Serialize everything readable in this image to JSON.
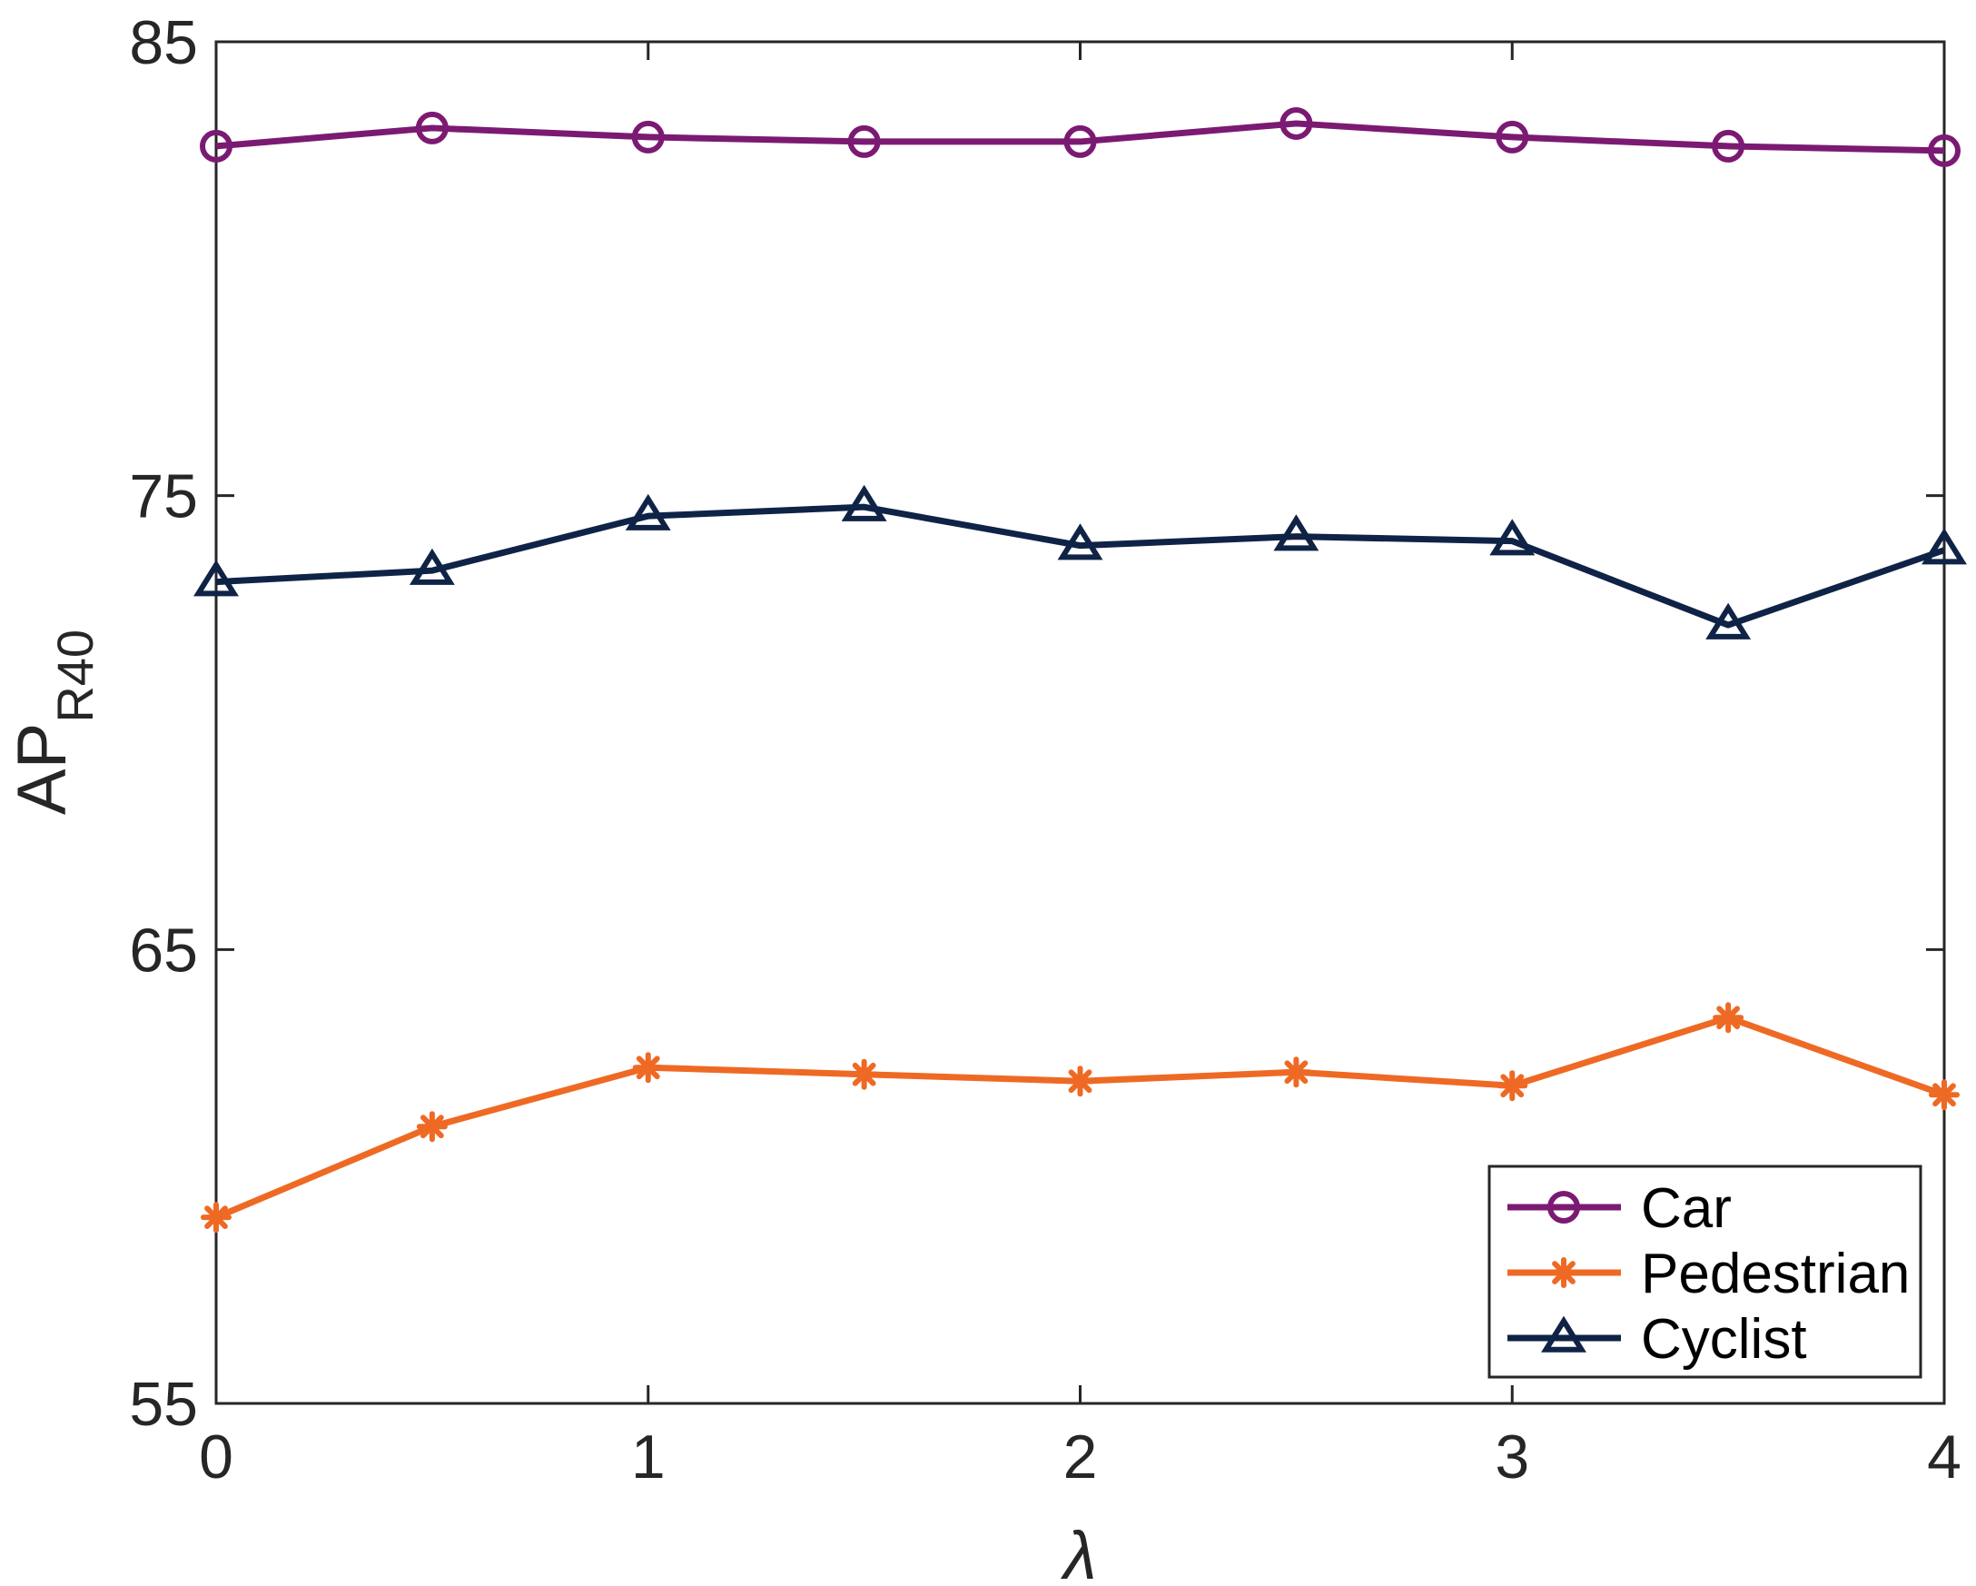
{
  "chart_data": {
    "type": "line",
    "x": [
      0,
      0.5,
      1,
      1.5,
      2,
      2.5,
      3,
      3.5,
      4
    ],
    "xlabel": "λ",
    "ylabel": {
      "main": "AP",
      "subscript": "R40"
    },
    "xlim": [
      0,
      4
    ],
    "ylim": [
      55,
      85
    ],
    "xticks": [
      0,
      1,
      2,
      3,
      4
    ],
    "yticks": [
      55,
      65,
      75,
      85
    ],
    "xtick_labels": [
      "0",
      "1",
      "2",
      "3",
      "4"
    ],
    "ytick_labels": [
      "55",
      "65",
      "75",
      "85"
    ],
    "grid": false,
    "legend_position": "bottom-right",
    "series": [
      {
        "name": "Car",
        "color": "#7b1a72",
        "marker": "circle",
        "values": [
          82.7,
          83.1,
          82.9,
          82.8,
          82.8,
          83.2,
          82.9,
          82.7,
          82.6
        ]
      },
      {
        "name": "Pedestrian",
        "color": "#ee6a24",
        "marker": "asterisk",
        "values": [
          59.1,
          61.1,
          62.4,
          62.25,
          62.1,
          62.3,
          62.0,
          63.5,
          61.8
        ]
      },
      {
        "name": "Cyclist",
        "color": "#0f2346",
        "marker": "triangle",
        "values": [
          73.1,
          73.35,
          74.55,
          74.75,
          73.9,
          74.1,
          74.0,
          72.15,
          73.8
        ]
      }
    ]
  }
}
